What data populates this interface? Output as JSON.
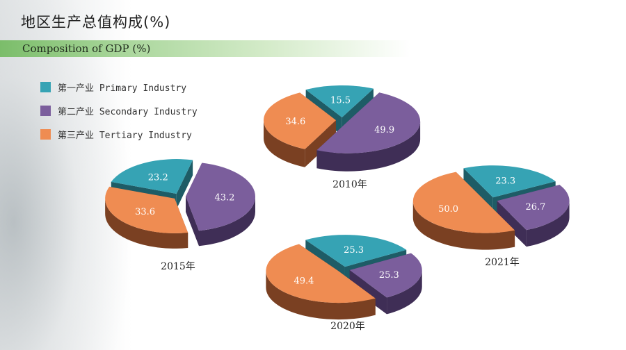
{
  "title": "地区生产总值构成(%)",
  "subtitle": "Composition of GDP (%)",
  "legend": [
    {
      "label": "第一产业 Primary Industry",
      "color": "#36a3b4"
    },
    {
      "label": "第二产业 Secondary Industry",
      "color": "#7b5e9c"
    },
    {
      "label": "第三产业 Tertiary Industry",
      "color": "#ef8c52"
    }
  ],
  "colors": {
    "primary_side": "#1e5c66",
    "secondary_side": "#3f2e56",
    "tertiary_side": "#7a4022"
  },
  "chart_data": [
    {
      "type": "pie",
      "year_label": "2010年",
      "categories": [
        "第一产业",
        "第二产业",
        "第三产业"
      ],
      "values": [
        15.5,
        49.9,
        34.6
      ]
    },
    {
      "type": "pie",
      "year_label": "2015年",
      "categories": [
        "第一产业",
        "第二产业",
        "第三产业"
      ],
      "values": [
        23.2,
        43.2,
        33.6
      ]
    },
    {
      "type": "pie",
      "year_label": "2020年",
      "categories": [
        "第一产业",
        "第二产业",
        "第三产业"
      ],
      "values": [
        25.3,
        25.3,
        49.4
      ]
    },
    {
      "type": "pie",
      "year_label": "2021年",
      "categories": [
        "第一产业",
        "第二产业",
        "第三产业"
      ],
      "values": [
        23.3,
        26.7,
        50.0
      ]
    }
  ]
}
